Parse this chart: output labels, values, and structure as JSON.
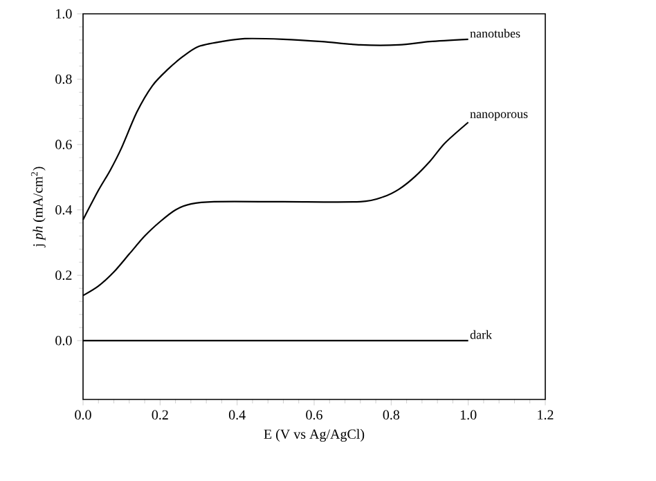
{
  "chart_data": {
    "type": "line",
    "xlabel": "E (V vs Ag/AgCl)",
    "ylabel": "j *ph* (mA/cm$^{2}$)",
    "xlim": [
      0,
      1.2
    ],
    "ylim": [
      -0.18,
      1.0
    ],
    "xticks": [
      {
        "value": 0,
        "label": "0.0"
      },
      {
        "value": 0.2,
        "label": "0.2"
      },
      {
        "value": 0.4,
        "label": "0.4"
      },
      {
        "value": 0.6,
        "label": "0.6"
      },
      {
        "value": 0.8,
        "label": "0.8"
      },
      {
        "value": 1.0,
        "label": "1.0"
      },
      {
        "value": 1.2,
        "label": "1.2"
      }
    ],
    "yticks": [
      {
        "value": 0,
        "label": "0.0"
      },
      {
        "value": 0.2,
        "label": "0.2"
      },
      {
        "value": 0.4,
        "label": "0.4"
      },
      {
        "value": 0.6,
        "label": "0.6"
      },
      {
        "value": 0.8,
        "label": "0.8"
      },
      {
        "value": 1.0,
        "label": "1.0"
      }
    ],
    "grid": false,
    "legend": false,
    "marker": "none",
    "line_style": "solid",
    "series": [
      {
        "name": "nanotubes",
        "color": "#000000",
        "x": [
          0,
          0.04,
          0.07,
          0.1,
          0.14,
          0.18,
          0.22,
          0.26,
          0.3,
          0.36,
          0.42,
          0.52,
          0.62,
          0.72,
          0.82,
          0.9,
          1.0
        ],
        "values": [
          0.37,
          0.46,
          0.52,
          0.59,
          0.7,
          0.78,
          0.83,
          0.87,
          0.9,
          0.915,
          0.924,
          0.922,
          0.915,
          0.905,
          0.905,
          0.915,
          0.922
        ]
      },
      {
        "name": "nanoporous",
        "color": "#000000",
        "x": [
          0,
          0.04,
          0.08,
          0.12,
          0.16,
          0.2,
          0.24,
          0.28,
          0.34,
          0.52,
          0.72,
          0.78,
          0.82,
          0.86,
          0.9,
          0.94,
          1.0
        ],
        "values": [
          0.138,
          0.167,
          0.21,
          0.265,
          0.32,
          0.364,
          0.4,
          0.418,
          0.425,
          0.425,
          0.425,
          0.44,
          0.463,
          0.5,
          0.548,
          0.605,
          0.668
        ]
      },
      {
        "name": "dark",
        "color": "#000000",
        "x": [
          0,
          1.0
        ],
        "values": [
          0,
          0
        ]
      }
    ]
  }
}
